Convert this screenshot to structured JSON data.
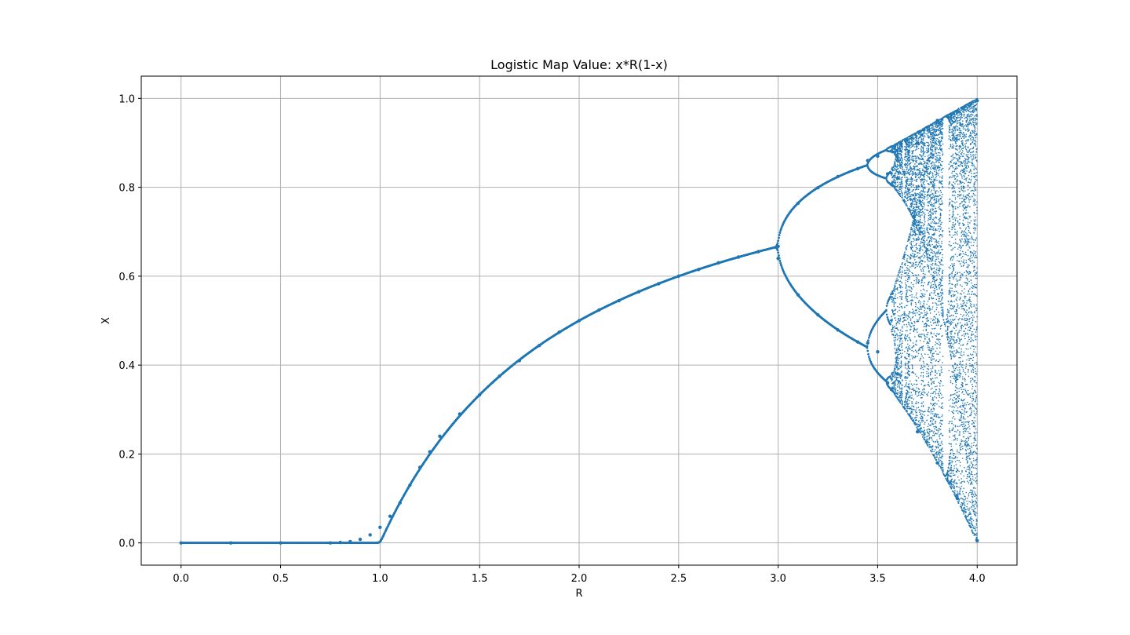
{
  "chart_data": {
    "type": "scatter",
    "title": "Logistic Map Value: x*R(1-x)",
    "xlabel": "R",
    "ylabel": "X",
    "xlim": [
      -0.2,
      4.2
    ],
    "ylim": [
      -0.05,
      1.05
    ],
    "xticks": [
      "0.0",
      "0.5",
      "1.0",
      "1.5",
      "2.0",
      "2.5",
      "3.0",
      "3.5",
      "4.0"
    ],
    "xtick_values": [
      0.0,
      0.5,
      1.0,
      1.5,
      2.0,
      2.5,
      3.0,
      3.5,
      4.0
    ],
    "yticks": [
      "0.0",
      "0.2",
      "0.4",
      "0.6",
      "0.8",
      "1.0"
    ],
    "ytick_values": [
      0.0,
      0.2,
      0.4,
      0.6,
      0.8,
      1.0
    ],
    "grid": true,
    "legend": "none",
    "marker_color": "#1f77b4",
    "series": [
      {
        "x": [
          0.0,
          0.25,
          0.5,
          0.75,
          0.8,
          0.85,
          0.9,
          0.95,
          1.0,
          1.05,
          1.1,
          1.15,
          1.2,
          1.25,
          1.3,
          1.4,
          1.5,
          1.6,
          1.7,
          1.8,
          1.9,
          2.0,
          2.1,
          2.2,
          2.3,
          2.4,
          2.5,
          2.6,
          2.7,
          2.8,
          2.9,
          3.0,
          3.0,
          3.1,
          3.1,
          3.2,
          3.2,
          3.3,
          3.3,
          3.4,
          3.4,
          3.45,
          3.45,
          3.5,
          3.5,
          3.55,
          3.55,
          3.6,
          3.6,
          3.7,
          3.7,
          3.8,
          3.8,
          3.9,
          3.9,
          4.0,
          4.0
        ],
        "y": [
          0.0,
          0.0,
          0.0,
          0.0,
          0.001,
          0.003,
          0.008,
          0.018,
          0.035,
          0.06,
          0.09,
          0.13,
          0.17,
          0.205,
          0.24,
          0.29,
          0.333,
          0.375,
          0.41,
          0.444,
          0.474,
          0.5,
          0.524,
          0.545,
          0.565,
          0.583,
          0.6,
          0.615,
          0.63,
          0.643,
          0.655,
          0.667,
          0.64,
          0.764,
          0.558,
          0.799,
          0.513,
          0.824,
          0.479,
          0.842,
          0.452,
          0.86,
          0.45,
          0.87,
          0.43,
          0.83,
          0.36,
          0.82,
          0.38,
          0.9,
          0.25,
          0.95,
          0.18,
          0.97,
          0.1,
          0.995,
          0.005
        ]
      }
    ]
  }
}
